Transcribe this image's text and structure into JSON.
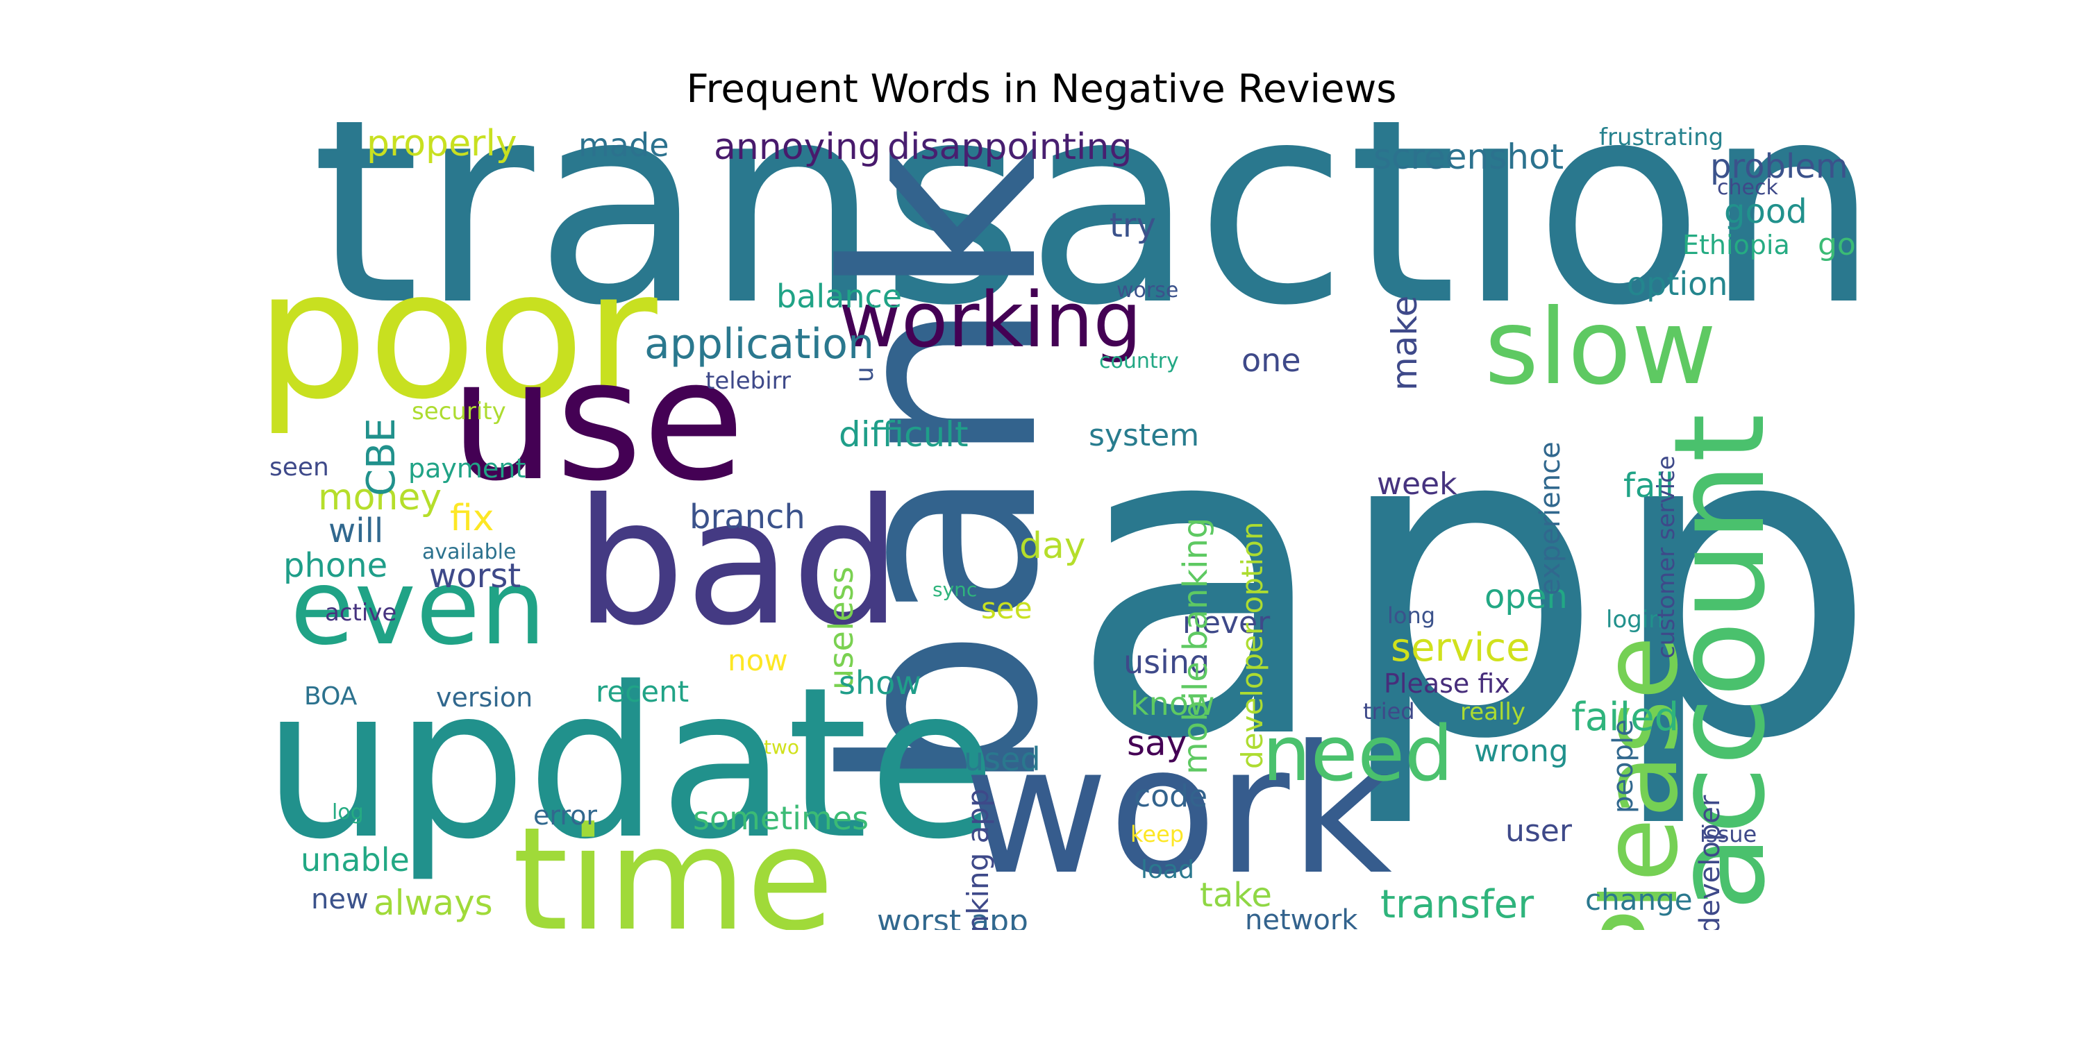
{
  "title": "Frequent Words in Negative Reviews",
  "palette": "viridis",
  "words": [
    {
      "text": "app",
      "color": "#2a788e"
    },
    {
      "text": "transaction",
      "color": "#2a788e"
    },
    {
      "text": "bank",
      "color": "#33638d"
    },
    {
      "text": "update",
      "color": "#21918c"
    },
    {
      "text": "work",
      "color": "#365c8d"
    },
    {
      "text": "poor",
      "color": "#c8e020"
    },
    {
      "text": "use",
      "color": "#440154"
    },
    {
      "text": "bad",
      "color": "#443a83"
    },
    {
      "text": "time",
      "color": "#a0da39"
    },
    {
      "text": "Please",
      "color": "#75d054"
    },
    {
      "text": "account",
      "color": "#4ac16d"
    },
    {
      "text": "slow",
      "color": "#5ec962"
    },
    {
      "text": "even",
      "color": "#20a386"
    },
    {
      "text": "working",
      "color": "#440154"
    },
    {
      "text": "need",
      "color": "#4ac16d"
    },
    {
      "text": "transaction",
      "color": "#2a788e"
    },
    {
      "text": "application",
      "color": "#2a788e"
    },
    {
      "text": "service",
      "color": "#d0e11c"
    },
    {
      "text": "failed",
      "color": "#2fb47c"
    },
    {
      "text": "properly",
      "color": "#c8e020"
    },
    {
      "text": "annoying",
      "color": "#481a6c"
    },
    {
      "text": "disappointing",
      "color": "#481f70"
    },
    {
      "text": "screenshot",
      "color": "#2c728e"
    },
    {
      "text": "problem",
      "color": "#3b528b"
    },
    {
      "text": "made",
      "color": "#2c728e"
    },
    {
      "text": "try",
      "color": "#3b528b"
    },
    {
      "text": "make",
      "color": "#3e4989"
    },
    {
      "text": "good",
      "color": "#21918c"
    },
    {
      "text": "Ethiopia",
      "color": "#25ab82"
    },
    {
      "text": "go",
      "color": "#3bbb75"
    },
    {
      "text": "option",
      "color": "#24868e"
    },
    {
      "text": "balance",
      "color": "#20a386"
    },
    {
      "text": "one",
      "color": "#3e4989"
    },
    {
      "text": "difficult",
      "color": "#1f9e89"
    },
    {
      "text": "system",
      "color": "#287c8e"
    },
    {
      "text": "money",
      "color": "#b5de2b"
    },
    {
      "text": "will",
      "color": "#31688e"
    },
    {
      "text": "fix",
      "color": "#fde725"
    },
    {
      "text": "branch",
      "color": "#3b528b"
    },
    {
      "text": "phone",
      "color": "#1f9e89"
    },
    {
      "text": "worst",
      "color": "#3e4989"
    },
    {
      "text": "day",
      "color": "#b5de2b"
    },
    {
      "text": "useless",
      "color": "#7ad151"
    },
    {
      "text": "see",
      "color": "#c8e020"
    },
    {
      "text": "fail",
      "color": "#20a386"
    },
    {
      "text": "open",
      "color": "#22a884"
    },
    {
      "text": "week",
      "color": "#46337f"
    },
    {
      "text": "login",
      "color": "#21918c"
    },
    {
      "text": "long",
      "color": "#3b528b"
    },
    {
      "text": "never",
      "color": "#3e4989"
    },
    {
      "text": "using",
      "color": "#3e4989"
    },
    {
      "text": "now",
      "color": "#fde725"
    },
    {
      "text": "show",
      "color": "#1f9e89"
    },
    {
      "text": "know",
      "color": "#5ec962"
    },
    {
      "text": "say",
      "color": "#440154"
    },
    {
      "text": "Please fix",
      "color": "#472d7b"
    },
    {
      "text": "tried",
      "color": "#3e4989"
    },
    {
      "text": "really",
      "color": "#addc30"
    },
    {
      "text": "wrong",
      "color": "#21918c"
    },
    {
      "text": "used",
      "color": "#2a788e"
    },
    {
      "text": "code",
      "color": "#33638d"
    },
    {
      "text": "keep",
      "color": "#fde725"
    },
    {
      "text": "load",
      "color": "#2a788e"
    },
    {
      "text": "take",
      "color": "#8fd744"
    },
    {
      "text": "network",
      "color": "#33638d"
    },
    {
      "text": "transfer",
      "color": "#2fb47c"
    },
    {
      "text": "change",
      "color": "#2a788e"
    },
    {
      "text": "user",
      "color": "#3e4989"
    },
    {
      "text": "issue",
      "color": "#3e4989"
    },
    {
      "text": "worst app",
      "color": "#31688e"
    },
    {
      "text": "always",
      "color": "#a0da39"
    },
    {
      "text": "unable",
      "color": "#22a884"
    },
    {
      "text": "new",
      "color": "#3b528b"
    },
    {
      "text": "sometimes",
      "color": "#3bbb75"
    },
    {
      "text": "error",
      "color": "#31688e"
    },
    {
      "text": "recent",
      "color": "#20a386"
    },
    {
      "text": "version",
      "color": "#31688e"
    },
    {
      "text": "BOA",
      "color": "#2c728e"
    },
    {
      "text": "log",
      "color": "#25ab82"
    },
    {
      "text": "two",
      "color": "#d0e11c"
    },
    {
      "text": "active",
      "color": "#46337f"
    },
    {
      "text": "available",
      "color": "#2c728e"
    },
    {
      "text": "sync",
      "color": "#2fb47c"
    },
    {
      "text": "payment",
      "color": "#20a386"
    },
    {
      "text": "seen",
      "color": "#3e4989"
    },
    {
      "text": "security",
      "color": "#addc30"
    },
    {
      "text": "telebirr",
      "color": "#3e4989"
    },
    {
      "text": "u",
      "color": "#3b528b"
    },
    {
      "text": "country",
      "color": "#22a884"
    },
    {
      "text": "worse",
      "color": "#3b528b"
    },
    {
      "text": "check",
      "color": "#3e4989"
    },
    {
      "text": "frustrating",
      "color": "#26828e"
    },
    {
      "text": "CBE",
      "color": "#21918c"
    },
    {
      "text": "every time",
      "color": "#2c728e"
    },
    {
      "text": "mobile banking",
      "color": "#5ec962"
    },
    {
      "text": "developer option",
      "color": "#addc30"
    },
    {
      "text": "banking app",
      "color": "#3e4989"
    },
    {
      "text": "experience",
      "color": "#31688e"
    },
    {
      "text": "people",
      "color": "#31688e"
    },
    {
      "text": "customer service",
      "color": "#3e4989"
    },
    {
      "text": "developer",
      "color": "#3e4989"
    }
  ]
}
